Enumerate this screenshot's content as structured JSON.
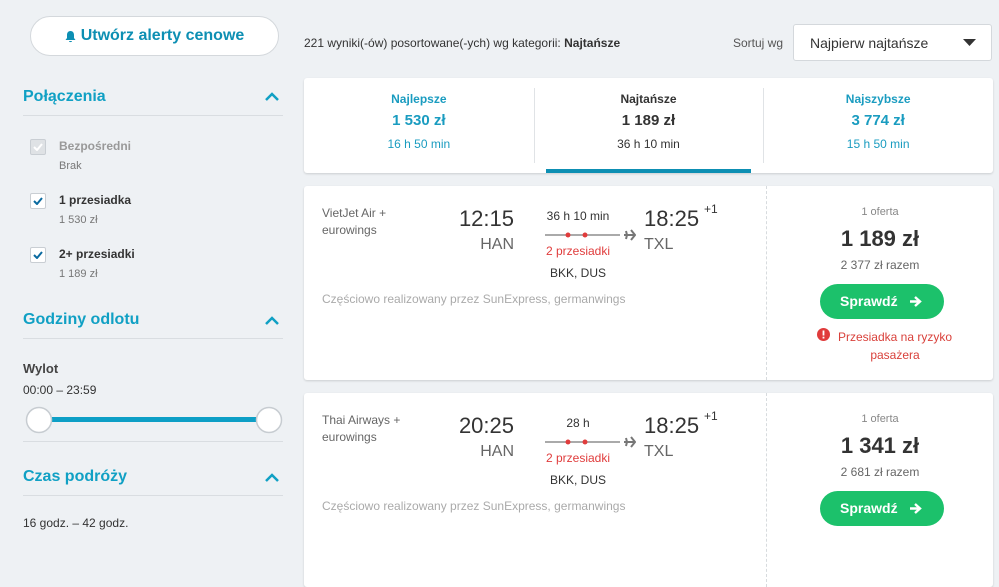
{
  "sidebar": {
    "alert_button": "Utwórz alerty cenowe",
    "connections": {
      "title": "Połączenia",
      "options": [
        {
          "label": "Bezpośredni",
          "price": "Brak",
          "checked": true,
          "disabled": true
        },
        {
          "label": "1 przesiadka",
          "price": "1 530 zł",
          "checked": true,
          "disabled": false
        },
        {
          "label": "2+ przesiadki",
          "price": "1 189 zł",
          "checked": true,
          "disabled": false
        }
      ]
    },
    "departure": {
      "title": "Godziny odlotu",
      "label": "Wylot",
      "range": "00:00 – 23:59"
    },
    "duration": {
      "title": "Czas podróży",
      "range": "16 godz. – 42 godz."
    }
  },
  "results": {
    "count_text": "221 wyniki(-ów) posortowane(-ych) wg kategorii:",
    "sort_category": "Najtańsze",
    "sort_label": "Sortuj wg",
    "sort_value": "Najpierw najtańsze"
  },
  "tabs": [
    {
      "label": "Najlepsze",
      "price": "1 530 zł",
      "duration": "16 h 50 min",
      "active": false
    },
    {
      "label": "Najtańsze",
      "price": "1 189 zł",
      "duration": "36 h 10 min",
      "active": true
    },
    {
      "label": "Najszybsze",
      "price": "3 774 zł",
      "duration": "15 h 50 min",
      "active": false
    }
  ],
  "flights": [
    {
      "airline": "VietJet Air + eurowings",
      "depart_time": "12:15",
      "depart_airport": "HAN",
      "duration": "36 h 10 min",
      "stops": "2 przesiadki",
      "via": "BKK, DUS",
      "arrive_time": "18:25",
      "day_offset": "+1",
      "arrive_airport": "TXL",
      "operated": "Częściowo realizowany przez SunExpress, germanwings",
      "offers": "1 oferta",
      "price": "1 189 zł",
      "total": "2 377 zł razem",
      "button": "Sprawdź",
      "warning": "Przesiadka na ryzyko pasażera"
    },
    {
      "airline": "Thai Airways + eurowings",
      "depart_time": "20:25",
      "depart_airport": "HAN",
      "duration": "28 h",
      "stops": "2 przesiadki",
      "via": "BKK, DUS",
      "arrive_time": "18:25",
      "day_offset": "+1",
      "arrive_airport": "TXL",
      "operated": "Częściowo realizowany przez SunExpress, germanwings",
      "offers": "1 oferta",
      "price": "1 341 zł",
      "total": "2 681 zł razem",
      "button": "Sprawdź"
    }
  ]
}
